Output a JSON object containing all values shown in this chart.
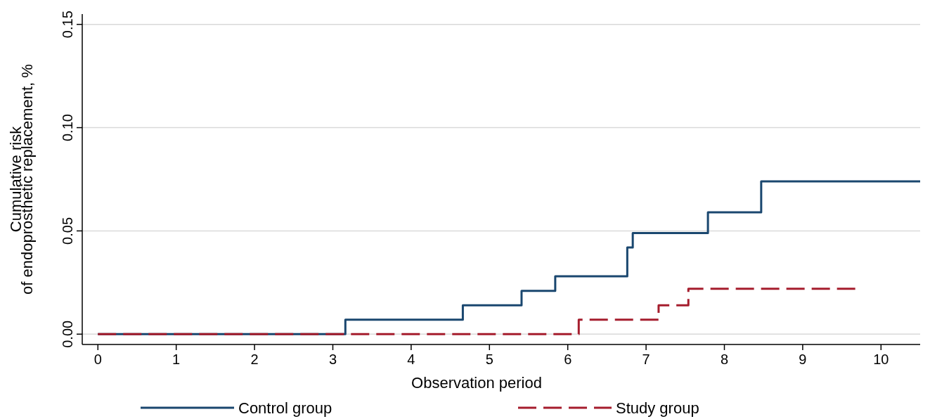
{
  "chart_data": {
    "type": "step",
    "xlabel": "Observation period",
    "ylabel": "Cumulative risk\nof endoprosthetic replacement, %",
    "xlim": [
      -0.2,
      10.5
    ],
    "xticks": [
      0,
      1,
      2,
      3,
      4,
      5,
      6,
      7,
      8,
      9,
      10
    ],
    "ylim": [
      -0.005,
      0.155
    ],
    "yticks": [
      {
        "value": 0,
        "label": "0.00"
      },
      {
        "value": 0.05,
        "label": "0.05"
      },
      {
        "value": 0.1,
        "label": "0.10"
      },
      {
        "value": 0.15,
        "label": "0.15"
      }
    ],
    "grid": "y",
    "legend": "bottom",
    "series": [
      {
        "name": "Control group",
        "color": "#1a476f",
        "line_style": "solid",
        "x": [
          0,
          3.16,
          4.66,
          5.41,
          5.84,
          6.76,
          6.83,
          7.79,
          8.47,
          10.5
        ],
        "values": [
          0,
          0.007,
          0.014,
          0.021,
          0.028,
          0.042,
          0.049,
          0.059,
          0.074,
          0.074
        ]
      },
      {
        "name": "Study group",
        "color": "#a51d2d",
        "line_style": "dashed",
        "x": [
          0,
          6.14,
          7.16,
          7.54,
          9.71
        ],
        "values": [
          0,
          0.007,
          0.014,
          0.022,
          0.022
        ]
      }
    ]
  }
}
